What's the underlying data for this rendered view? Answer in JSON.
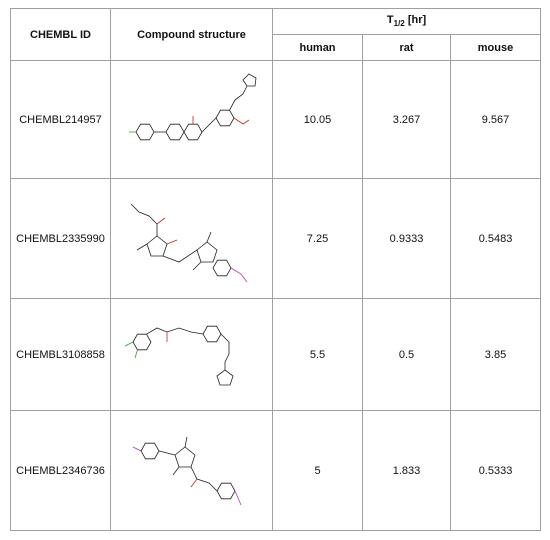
{
  "table": {
    "header": {
      "id": "CHEMBL ID",
      "structure": "Compound structure",
      "half_life": {
        "symbol": "T",
        "subscript": "1/2",
        "unit": "[hr]"
      },
      "species": [
        "human",
        "rat",
        "mouse"
      ]
    },
    "rows": [
      {
        "id": "CHEMBL214957",
        "values": [
          10.05,
          3.267,
          9.567
        ]
      },
      {
        "id": "CHEMBL2335990",
        "values": [
          7.25,
          0.9333,
          0.5483
        ]
      },
      {
        "id": "CHEMBL3108858",
        "values": [
          5.5,
          0.5,
          3.85
        ]
      },
      {
        "id": "CHEMBL2346736",
        "values": [
          5,
          1.833,
          0.5333
        ]
      }
    ]
  }
}
